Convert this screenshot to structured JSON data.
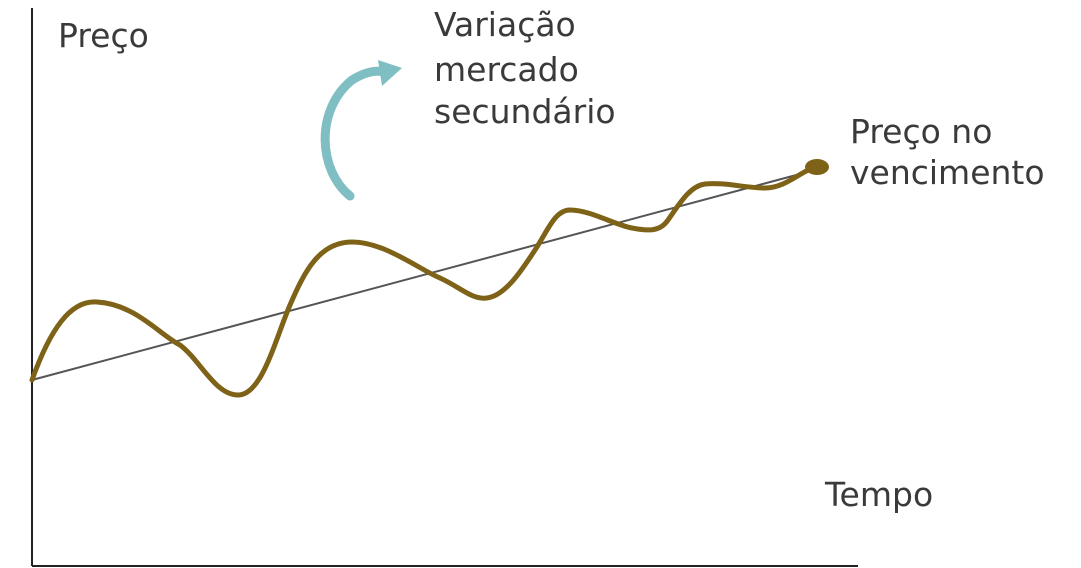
{
  "labels": {
    "y_axis": "Preço",
    "x_axis": "Tempo",
    "annotation": [
      "Variação",
      "mercado",
      "secundário"
    ],
    "endpoint": [
      "Preço no",
      "vencimento"
    ]
  },
  "colors": {
    "price_curve": "#7d6218",
    "trend_line": "#555555",
    "axes": "#222222",
    "arrow": "#7fbfc3",
    "text": "#3a3a3a"
  }
}
